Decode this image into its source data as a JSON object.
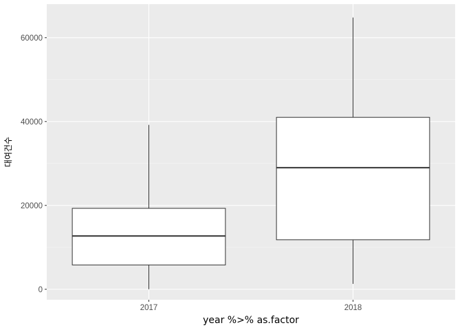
{
  "chart_data": {
    "type": "boxplot",
    "xlabel": "year %>% as.factor",
    "ylabel": "대여건수",
    "categories": [
      "2017",
      "2018"
    ],
    "boxes": [
      {
        "category": "2017",
        "lower_whisker": 0,
        "q1": 5800,
        "median": 12700,
        "q3": 19300,
        "upper_whisker": 39200
      },
      {
        "category": "2018",
        "lower_whisker": 1300,
        "q1": 11800,
        "median": 29000,
        "q3": 41000,
        "upper_whisker": 64800
      }
    ],
    "ylim": [
      -2500,
      68000
    ],
    "yticks": [
      0,
      20000,
      40000,
      60000
    ],
    "ytick_labels": [
      "0",
      "20000",
      "40000",
      "60000"
    ],
    "xtick_labels": [
      "2017",
      "2018"
    ],
    "grid": true,
    "colors": {
      "panel_background": "#ebebeb",
      "grid_major": "#ffffff",
      "grid_minor": "#f5f5f5",
      "box_fill": "#ffffff",
      "box_stroke": "#333333",
      "tick_label": "#4d4d4d"
    }
  }
}
